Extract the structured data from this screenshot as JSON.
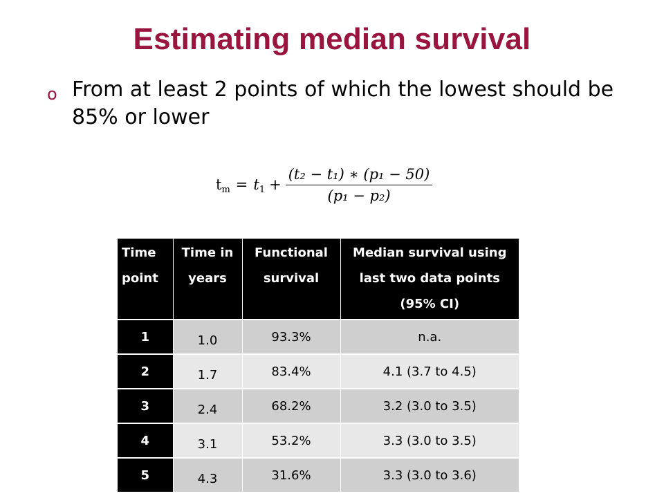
{
  "title": "Estimating median survival",
  "bullet": {
    "marker": "o",
    "text": "From at least 2 points of which the lowest should be 85% or lower"
  },
  "formula": {
    "lhs_var": "t",
    "lhs_sub": "m",
    "eq": "=",
    "t1_var": "t",
    "t1_sub": "1",
    "plus": "+",
    "numerator": "(t₂ − t₁) ∗ (p₁ − 50)",
    "denominator": "(p₁ − p₂)"
  },
  "table": {
    "headers": [
      "Time point",
      "Time in years",
      "Functional survival",
      "Median survival using last two data points (95% CI)"
    ],
    "rows": [
      {
        "point": "1",
        "years": "1.0",
        "survival": "93.3%",
        "median": "n.a."
      },
      {
        "point": "2",
        "years": "1.7",
        "survival": "83.4%",
        "median": "4.1 (3.7 to 4.5)"
      },
      {
        "point": "3",
        "years": "2.4",
        "survival": "68.2%",
        "median": "3.2 (3.0 to 3.5)"
      },
      {
        "point": "4",
        "years": "3.1",
        "survival": "53.2%",
        "median": "3.3 (3.0 to 3.5)"
      },
      {
        "point": "5",
        "years": "4.3",
        "survival": "31.6%",
        "median": "3.3 (3.0 to 3.6)"
      }
    ]
  }
}
